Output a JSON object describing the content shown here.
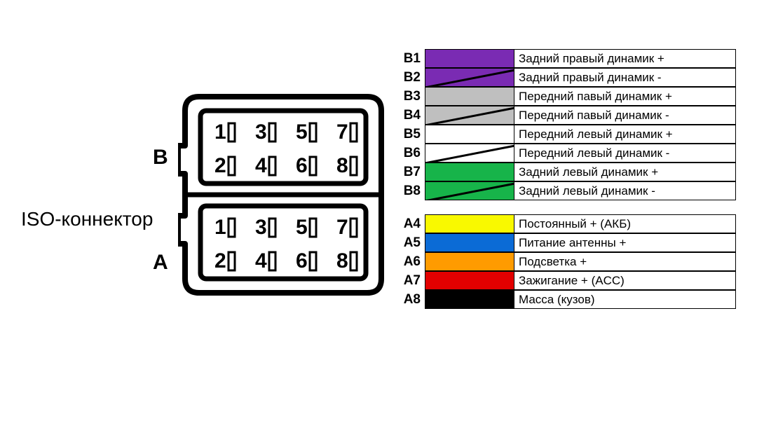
{
  "iso_label": "ISO-коннектор",
  "socket_b_label": "B",
  "socket_a_label": "A",
  "pin_numbers": [
    "1",
    "2",
    "3",
    "4",
    "5",
    "6",
    "7",
    "8"
  ],
  "colors": {
    "purple": "#7a2bb3",
    "silver": "#bfbfbf",
    "white": "#ffffff",
    "green": "#17b44a",
    "yellow": "#f9f900",
    "blue": "#0b6bd6",
    "orange": "#ff9b00",
    "red": "#e20000",
    "black": "#000000",
    "border": "#000000",
    "stripe": "#000000"
  },
  "stripe_angle_deg": -11,
  "legend_b": [
    {
      "pin": "B1",
      "color": "purple",
      "stripe": false,
      "desc": "Задний правый динамик +"
    },
    {
      "pin": "B2",
      "color": "purple",
      "stripe": true,
      "desc": "Задний правый динамик -"
    },
    {
      "pin": "B3",
      "color": "silver",
      "stripe": false,
      "desc": "Передний павый динамик +"
    },
    {
      "pin": "B4",
      "color": "silver",
      "stripe": true,
      "desc": "Передний павый динамик -"
    },
    {
      "pin": "B5",
      "color": "white",
      "stripe": false,
      "desc": "Передний левый динамик +"
    },
    {
      "pin": "B6",
      "color": "white",
      "stripe": true,
      "desc": "Передний левый динамик -"
    },
    {
      "pin": "B7",
      "color": "green",
      "stripe": false,
      "desc": "Задний левый динамик +"
    },
    {
      "pin": "B8",
      "color": "green",
      "stripe": true,
      "desc": "Задний левый динамик -"
    }
  ],
  "legend_a": [
    {
      "pin": "A4",
      "color": "yellow",
      "stripe": false,
      "desc": "Постоянный + (АКБ)"
    },
    {
      "pin": "A5",
      "color": "blue",
      "stripe": false,
      "desc": "Питание антенны +"
    },
    {
      "pin": "A6",
      "color": "orange",
      "stripe": false,
      "desc": "Подсветка +"
    },
    {
      "pin": "A7",
      "color": "red",
      "stripe": false,
      "desc": "Зажигание + (ACC)"
    },
    {
      "pin": "A8",
      "color": "black",
      "stripe": false,
      "desc": "Масса (кузов)"
    }
  ]
}
